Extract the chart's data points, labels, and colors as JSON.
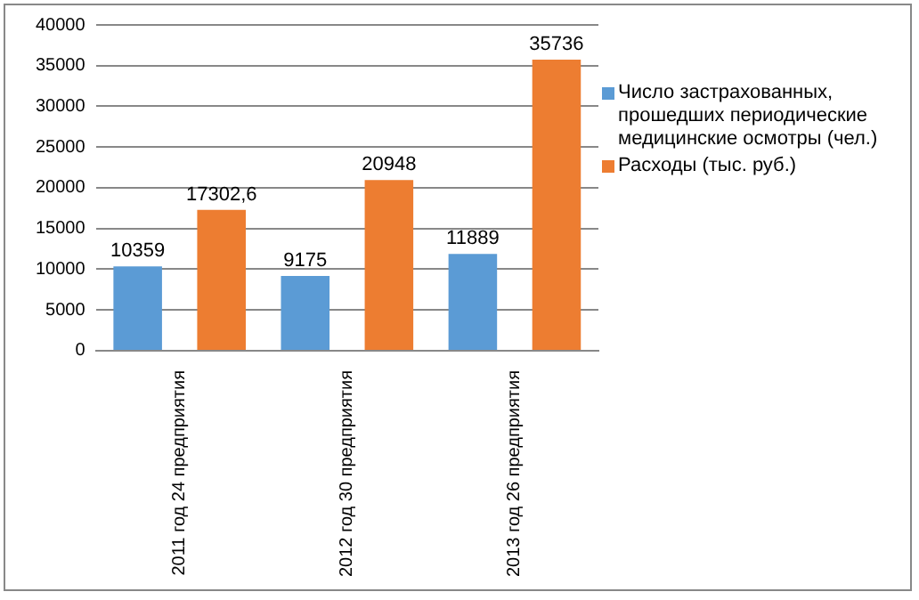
{
  "chart_data": {
    "type": "bar",
    "categories": [
      "2011 год 24 предприятия",
      "2012 год 30 предприятия",
      "2013 год 26 предприятия"
    ],
    "series": [
      {
        "name": "Число застрахованных, прошедших периодические медицинские осмотры (чел.)",
        "color": "#5b9bd5",
        "values": [
          10359,
          9175,
          11889
        ],
        "value_labels": [
          "10359",
          "9175",
          "11889"
        ]
      },
      {
        "name": "Расходы (тыс. руб.)",
        "color": "#ed7d31",
        "values": [
          17302.6,
          20948,
          35736
        ],
        "value_labels": [
          "17302,6",
          "20948",
          "35736"
        ]
      }
    ],
    "ylim": [
      0,
      40000
    ],
    "yticks": [
      0,
      5000,
      10000,
      15000,
      20000,
      25000,
      30000,
      35000,
      40000
    ],
    "grid": "y",
    "legend": "right"
  }
}
